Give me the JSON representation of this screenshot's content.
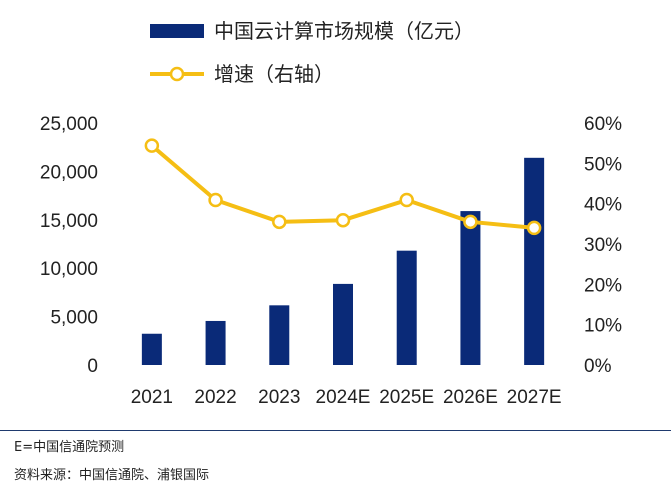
{
  "chart_data": {
    "type": "bar+line",
    "categories": [
      "2021",
      "2022",
      "2023",
      "2024E",
      "2025E",
      "2026E",
      "2027E"
    ],
    "series": [
      {
        "name": "中国云计算市场规模（亿元）",
        "type": "bar",
        "axis": "left",
        "color": "#0a2a78",
        "values": [
          3229,
          4550,
          6165,
          8378,
          11810,
          15900,
          21404
        ]
      },
      {
        "name": "增速（右轴）",
        "type": "line",
        "axis": "right",
        "color": "#f5be14",
        "values": [
          54.4,
          40.9,
          35.5,
          35.9,
          40.9,
          35.5,
          34.0
        ]
      }
    ],
    "y_left": {
      "min": 0,
      "max": 25000,
      "ticks": [
        "0",
        "5,000",
        "10,000",
        "15,000",
        "20,000",
        "25,000"
      ]
    },
    "y_right": {
      "min": 0,
      "max": 60,
      "ticks": [
        "0%",
        "10%",
        "20%",
        "30%",
        "40%",
        "50%",
        "60%"
      ]
    },
    "legend_position": "top-left",
    "grid": false
  },
  "footnotes": {
    "note": "E=中国信通院预测",
    "source": "资料来源：中国信通院、浦银国际"
  }
}
